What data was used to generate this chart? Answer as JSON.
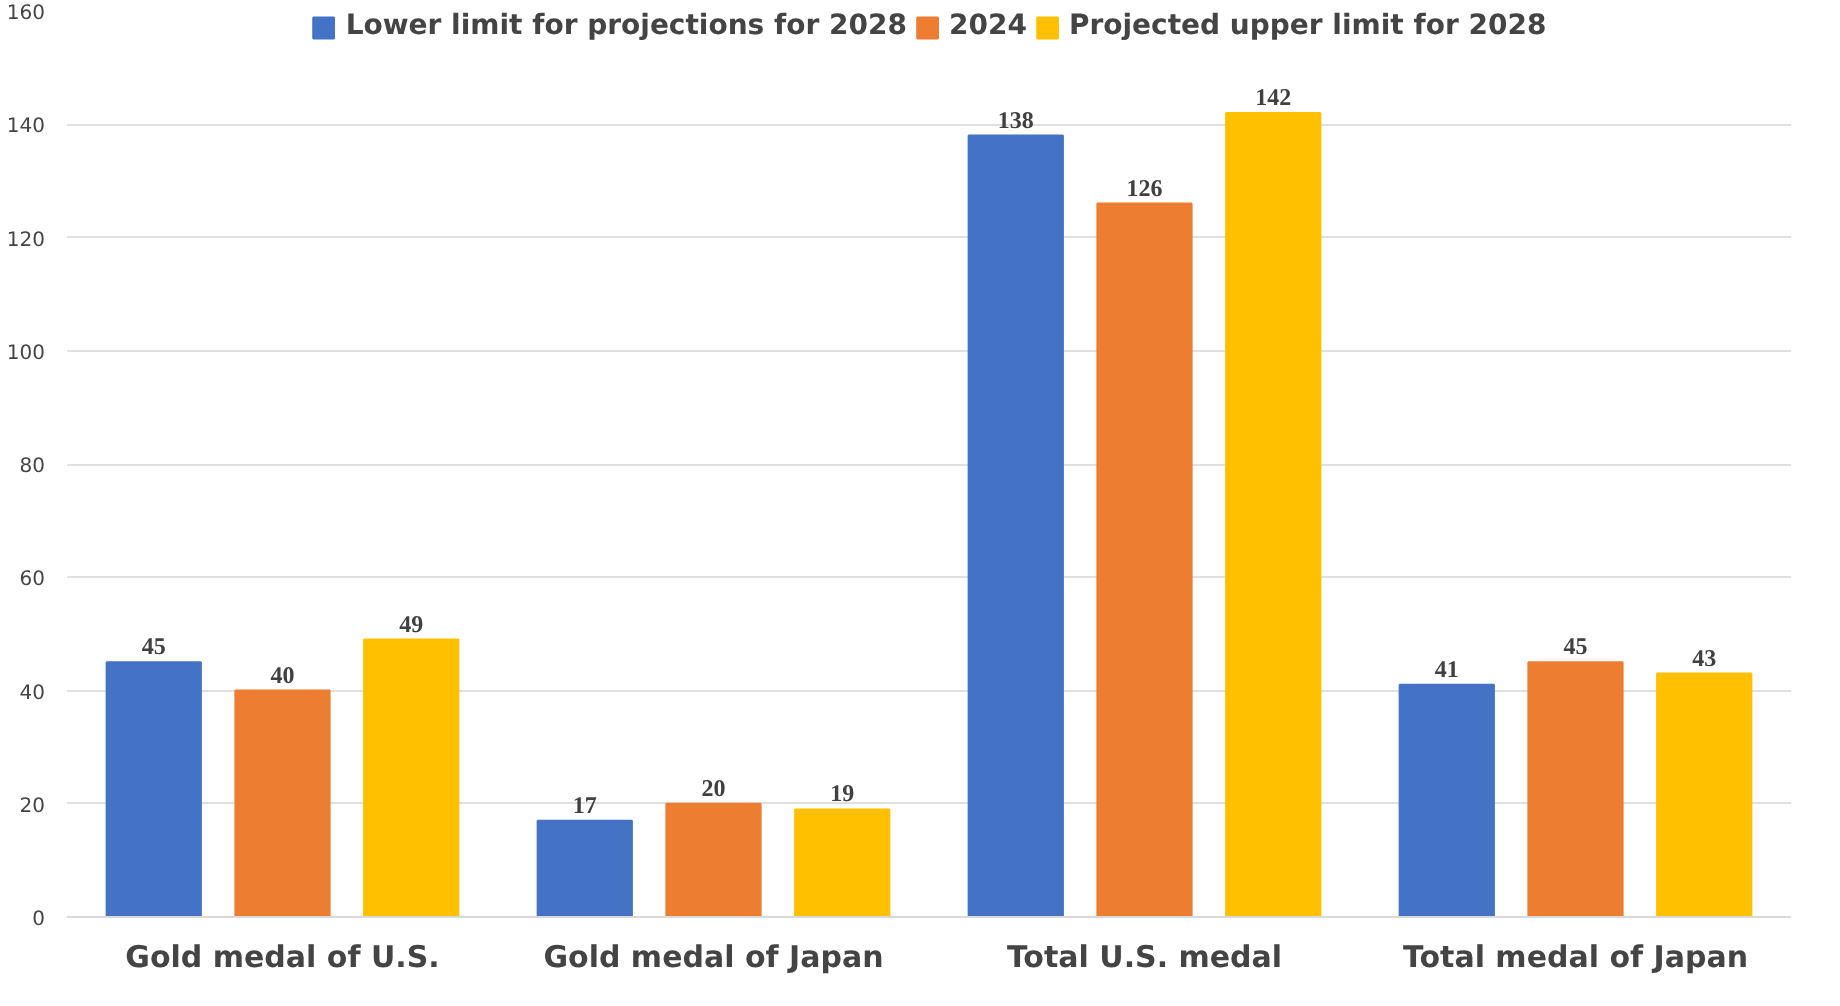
{
  "chart_data": {
    "type": "bar",
    "categories": [
      "Gold medal of U.S.",
      "Gold medal of Japan",
      "Total U.S. medal",
      "Total medal of Japan"
    ],
    "series": [
      {
        "name": "Lower limit for projections for 2028",
        "color": "#4472c4",
        "values": [
          45,
          17,
          138,
          41
        ]
      },
      {
        "name": "2024",
        "color": "#ed7d31",
        "values": [
          40,
          20,
          126,
          45
        ]
      },
      {
        "name": "Projected upper limit for 2028",
        "color": "#ffc000",
        "values": [
          49,
          19,
          142,
          43
        ]
      }
    ],
    "ylim": [
      0,
      160
    ],
    "yticks": [
      0,
      20,
      40,
      60,
      80,
      100,
      120,
      140,
      160
    ],
    "grid": "y",
    "legend": "top",
    "data_labels": true
  }
}
